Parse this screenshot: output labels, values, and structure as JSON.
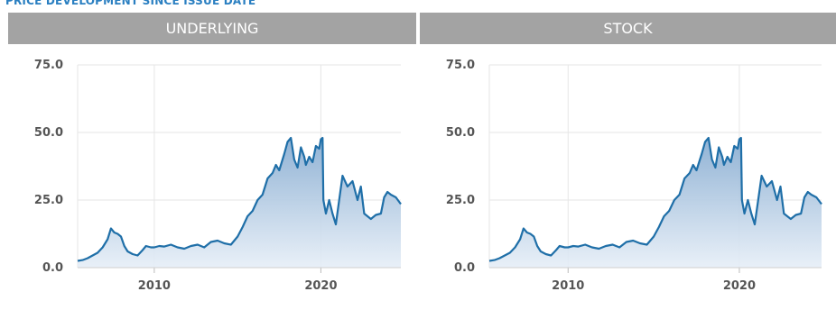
{
  "page": {
    "section_title": "PRICE DEVELOPMENT SINCE ISSUE DATE"
  },
  "colors": {
    "header_bg": "#a3a3a3",
    "line": "#1f6fa8",
    "fill_top": "#8aaed2",
    "fill_bottom": "#e6eef7",
    "grid": "#e6e6e6",
    "title": "#2a7fc1"
  },
  "chart_data": [
    {
      "type": "area",
      "title": "UNDERLYING",
      "xlabel": "",
      "ylabel": "",
      "xlim": [
        2005.4,
        2024.8
      ],
      "ylim": [
        0,
        75
      ],
      "x_ticks": [
        2010,
        2020
      ],
      "x_tick_labels": [
        "2010",
        "2020"
      ],
      "y_ticks": [
        0,
        25,
        50,
        75
      ],
      "y_tick_labels": [
        "0.0",
        "25.0",
        "50.0",
        "75.0"
      ],
      "grid": true,
      "legend": "none",
      "x": [
        2005.4,
        2005.7,
        2006.0,
        2006.3,
        2006.6,
        2006.9,
        2007.2,
        2007.4,
        2007.6,
        2007.8,
        2008.0,
        2008.2,
        2008.4,
        2008.7,
        2009.0,
        2009.3,
        2009.5,
        2009.8,
        2010.0,
        2010.3,
        2010.6,
        2011.0,
        2011.4,
        2011.8,
        2012.2,
        2012.6,
        2013.0,
        2013.4,
        2013.8,
        2014.2,
        2014.6,
        2015.0,
        2015.3,
        2015.6,
        2015.9,
        2016.2,
        2016.5,
        2016.8,
        2017.1,
        2017.3,
        2017.5,
        2017.8,
        2018.0,
        2018.2,
        2018.4,
        2018.6,
        2018.8,
        2019.0,
        2019.1,
        2019.3,
        2019.5,
        2019.7,
        2019.9,
        2020.0,
        2020.1,
        2020.15,
        2020.3,
        2020.5,
        2020.7,
        2020.9,
        2021.1,
        2021.3,
        2021.6,
        2021.9,
        2022.2,
        2022.4,
        2022.6,
        2022.8,
        2023.0,
        2023.3,
        2023.6,
        2023.8,
        2024.0,
        2024.2,
        2024.5,
        2024.8
      ],
      "y": [
        2.5,
        2.8,
        3.5,
        4.5,
        5.5,
        7.5,
        10.5,
        14.5,
        13.0,
        12.5,
        11.5,
        8.0,
        6.0,
        5.0,
        4.5,
        6.5,
        8.0,
        7.5,
        7.5,
        8.0,
        7.8,
        8.5,
        7.5,
        7.0,
        8.0,
        8.5,
        7.5,
        9.5,
        10.0,
        9.0,
        8.5,
        11.5,
        15.0,
        19.0,
        21.0,
        25.0,
        27.0,
        33.0,
        35.0,
        38.0,
        36.0,
        42.0,
        46.5,
        48.0,
        40.0,
        37.0,
        44.5,
        41.0,
        38.0,
        41.0,
        39.0,
        45.0,
        44.0,
        47.5,
        48.0,
        25.0,
        20.0,
        25.0,
        20.0,
        16.0,
        25.0,
        34.0,
        30.0,
        32.0,
        25.0,
        30.0,
        20.0,
        19.0,
        18.0,
        19.5,
        20.0,
        26.0,
        28.0,
        27.0,
        26.0,
        23.5
      ]
    },
    {
      "type": "area",
      "title": "STOCK",
      "xlabel": "",
      "ylabel": "",
      "xlim": [
        2005.4,
        2024.8
      ],
      "ylim": [
        0,
        75
      ],
      "x_ticks": [
        2010,
        2020
      ],
      "x_tick_labels": [
        "2010",
        "2020"
      ],
      "y_ticks": [
        0,
        25,
        50,
        75
      ],
      "y_tick_labels": [
        "0.0",
        "25.0",
        "50.0",
        "75.0"
      ],
      "grid": true,
      "legend": "none",
      "x": [
        2005.4,
        2005.7,
        2006.0,
        2006.3,
        2006.6,
        2006.9,
        2007.2,
        2007.4,
        2007.6,
        2007.8,
        2008.0,
        2008.2,
        2008.4,
        2008.7,
        2009.0,
        2009.3,
        2009.5,
        2009.8,
        2010.0,
        2010.3,
        2010.6,
        2011.0,
        2011.4,
        2011.8,
        2012.2,
        2012.6,
        2013.0,
        2013.4,
        2013.8,
        2014.2,
        2014.6,
        2015.0,
        2015.3,
        2015.6,
        2015.9,
        2016.2,
        2016.5,
        2016.8,
        2017.1,
        2017.3,
        2017.5,
        2017.8,
        2018.0,
        2018.2,
        2018.4,
        2018.6,
        2018.8,
        2019.0,
        2019.1,
        2019.3,
        2019.5,
        2019.7,
        2019.9,
        2020.0,
        2020.1,
        2020.15,
        2020.3,
        2020.5,
        2020.7,
        2020.9,
        2021.1,
        2021.3,
        2021.6,
        2021.9,
        2022.2,
        2022.4,
        2022.6,
        2022.8,
        2023.0,
        2023.3,
        2023.6,
        2023.8,
        2024.0,
        2024.2,
        2024.5,
        2024.8
      ],
      "y": [
        2.5,
        2.8,
        3.5,
        4.5,
        5.5,
        7.5,
        10.5,
        14.5,
        13.0,
        12.5,
        11.5,
        8.0,
        6.0,
        5.0,
        4.5,
        6.5,
        8.0,
        7.5,
        7.5,
        8.0,
        7.8,
        8.5,
        7.5,
        7.0,
        8.0,
        8.5,
        7.5,
        9.5,
        10.0,
        9.0,
        8.5,
        11.5,
        15.0,
        19.0,
        21.0,
        25.0,
        27.0,
        33.0,
        35.0,
        38.0,
        36.0,
        42.0,
        46.5,
        48.0,
        40.0,
        37.0,
        44.5,
        41.0,
        38.0,
        41.0,
        39.0,
        45.0,
        44.0,
        47.5,
        48.0,
        25.0,
        20.0,
        25.0,
        20.0,
        16.0,
        25.0,
        34.0,
        30.0,
        32.0,
        25.0,
        30.0,
        20.0,
        19.0,
        18.0,
        19.5,
        20.0,
        26.0,
        28.0,
        27.0,
        26.0,
        23.5
      ]
    }
  ]
}
